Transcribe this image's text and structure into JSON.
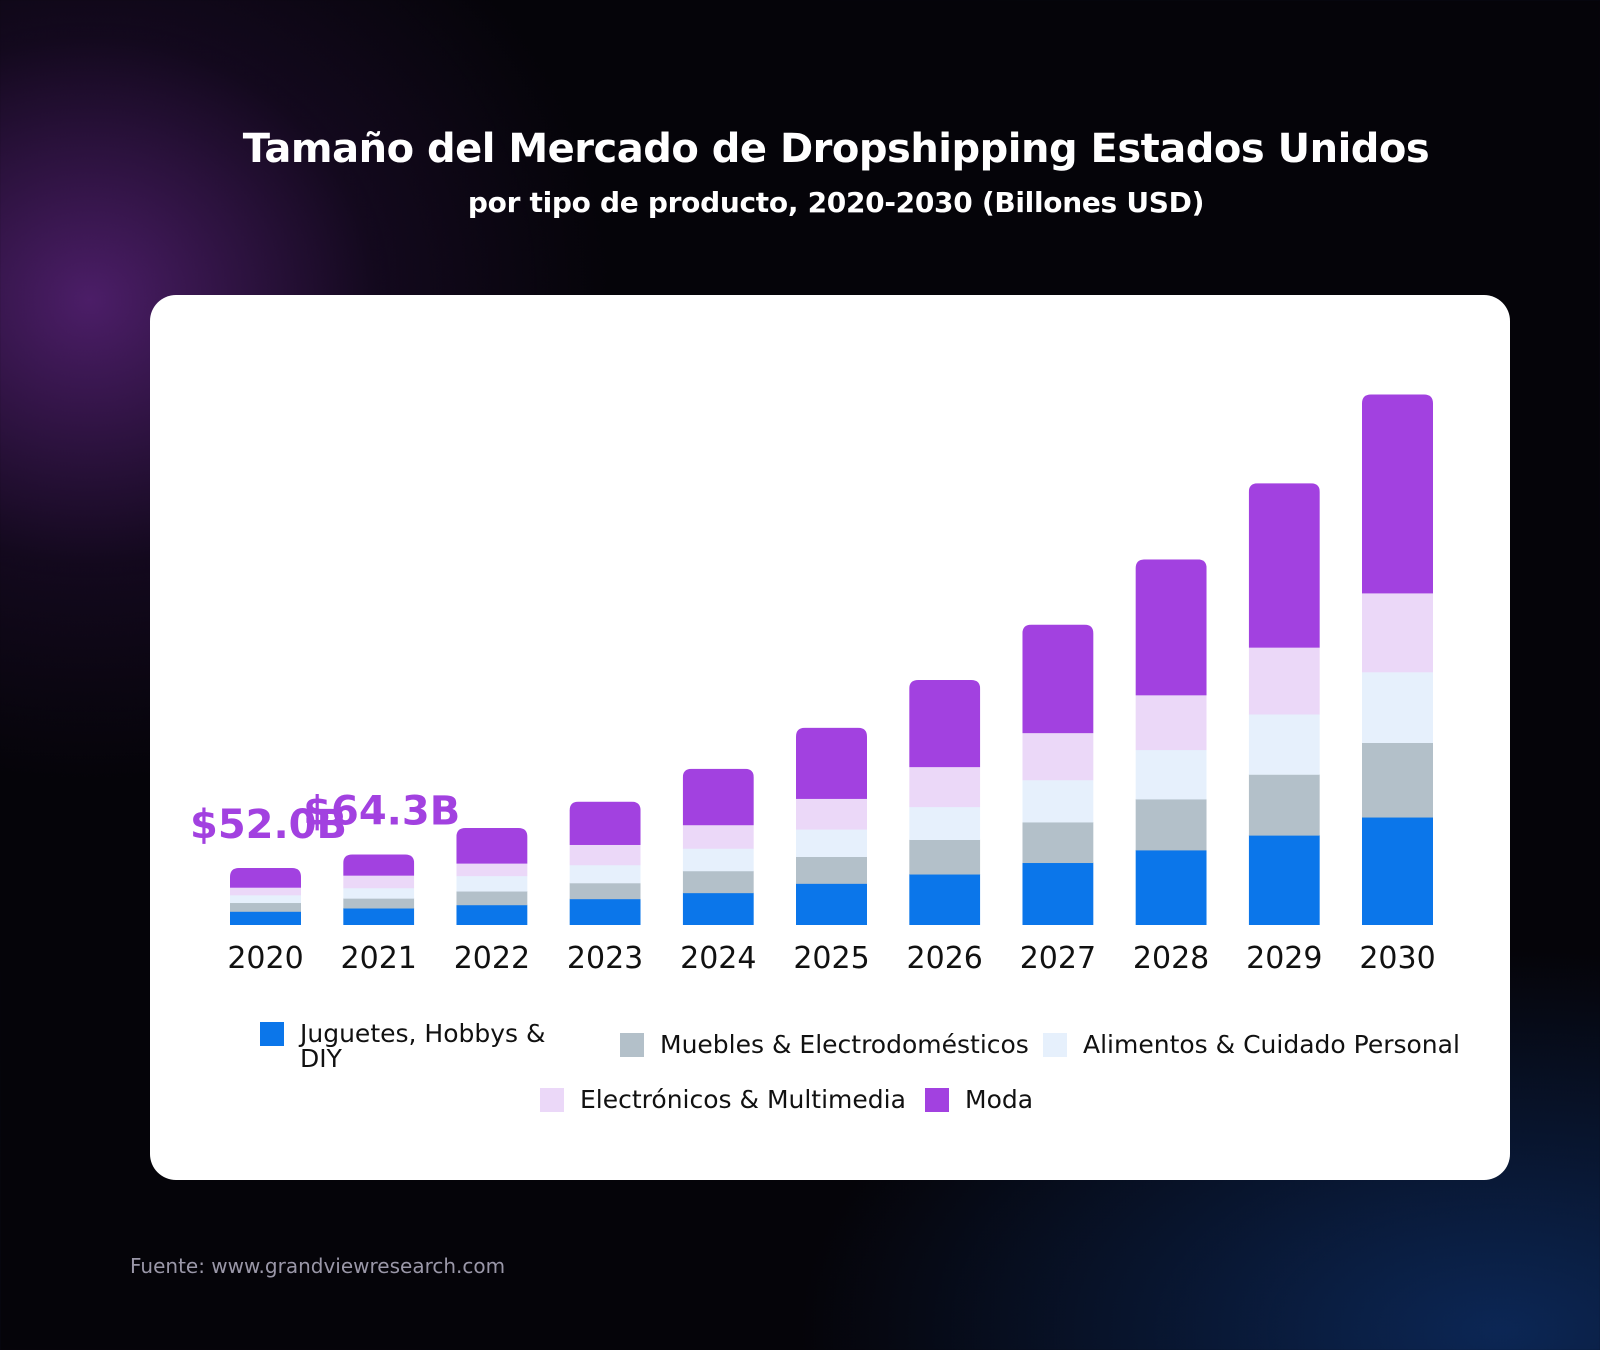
{
  "title": "Tamaño del Mercado de Dropshipping Estados Unidos",
  "subtitle": "por tipo de producto, 2020-2030 (Billones USD)",
  "source": "Fuente: www.grandviewresearch.com",
  "chart_data": {
    "type": "bar",
    "stacked": true,
    "categories": [
      "2020",
      "2021",
      "2022",
      "2023",
      "2024",
      "2025",
      "2026",
      "2027",
      "2028",
      "2029",
      "2030"
    ],
    "series": [
      {
        "name": "Juguetes, Hobbys & DIY",
        "color": "#0b76ea",
        "values": [
          12.5,
          15.5,
          18.5,
          24.0,
          29.5,
          38.0,
          46.5,
          57.0,
          68.5,
          82.0,
          98.5
        ]
      },
      {
        "name": "Muebles & Electrodomésticos",
        "color": "#b3c0c9",
        "values": [
          8.0,
          9.0,
          12.5,
          14.5,
          20.0,
          24.5,
          31.5,
          37.0,
          46.5,
          55.5,
          68.0
        ]
      },
      {
        "name": "Alimentos & Cuidado Personal",
        "color": "#e6f0fc",
        "values": [
          7.0,
          9.5,
          14.0,
          16.5,
          20.5,
          25.0,
          30.0,
          38.5,
          45.0,
          55.0,
          64.5
        ]
      },
      {
        "name": "Electrónicos & Multimedia",
        "color": "#ebd8f8",
        "values": [
          6.5,
          11.0,
          11.0,
          18.0,
          21.0,
          27.5,
          36.0,
          42.5,
          49.5,
          60.5,
          71.5
        ]
      },
      {
        "name": "Moda",
        "color": "#a241e0",
        "values": [
          18.0,
          19.3,
          32.5,
          39.5,
          51.5,
          65.0,
          79.5,
          99.0,
          124.0,
          150.0,
          181.5
        ]
      }
    ],
    "annotations": [
      {
        "category": "2020",
        "text": "$52.0B"
      },
      {
        "category": "2021",
        "text": "$64.3B"
      }
    ],
    "ylim": [
      0,
      520
    ],
    "grid": false,
    "legend_position": "bottom"
  }
}
